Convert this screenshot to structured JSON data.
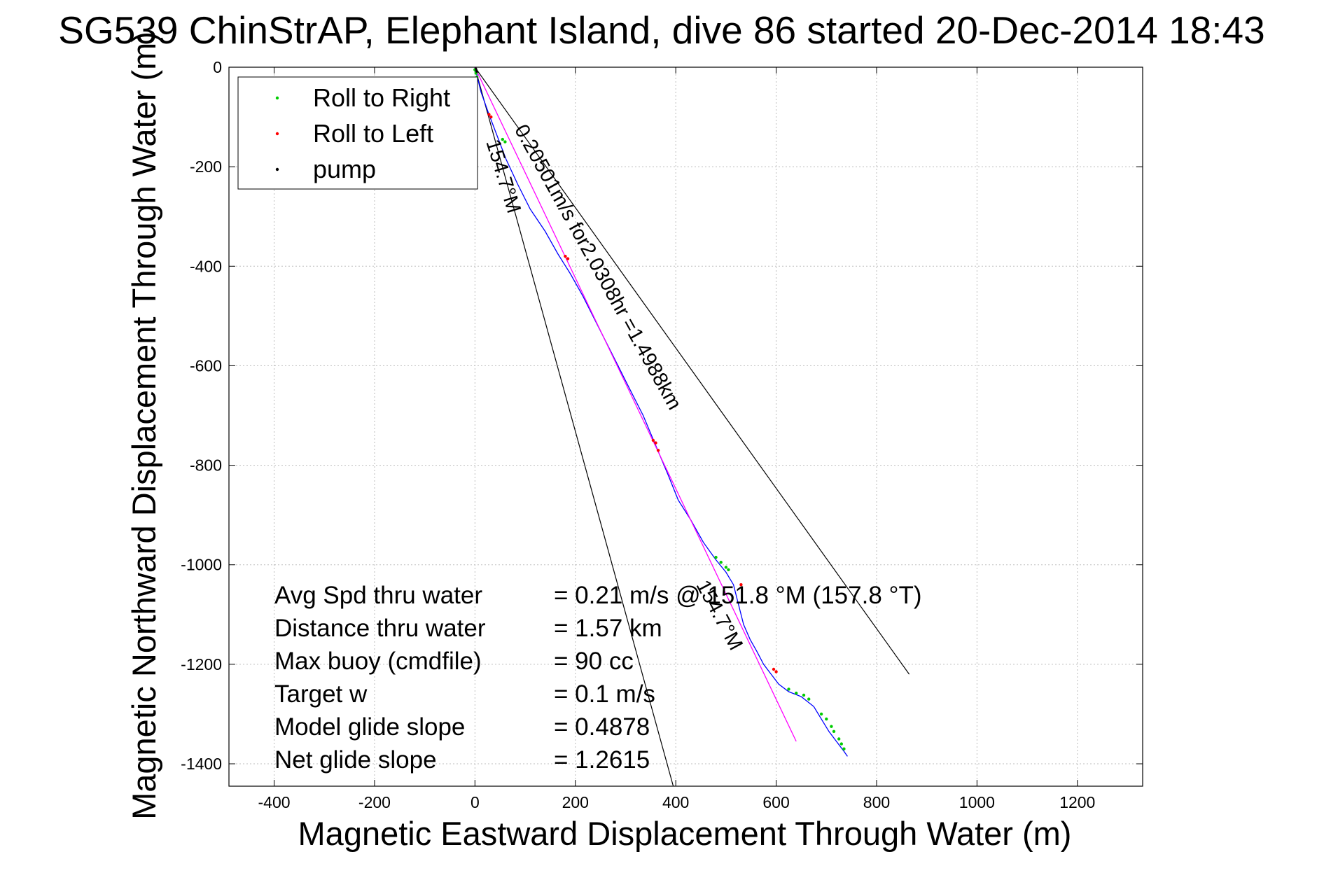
{
  "chart_data": {
    "type": "line",
    "title": "SG539 ChinStrAP, Elephant Island, dive 86 started 20-Dec-2014 18:43",
    "xlabel": "Magnetic Eastward Displacement Through Water (m)",
    "ylabel": "Magnetic Northward Displacement Through Water (m)",
    "xlim": [
      -490,
      1330
    ],
    "ylim": [
      -1445,
      0
    ],
    "xticks": [
      -400,
      -200,
      0,
      200,
      400,
      600,
      800,
      1000,
      1200
    ],
    "yticks": [
      0,
      -200,
      -400,
      -600,
      -800,
      -1000,
      -1200,
      -1400
    ],
    "grid": true,
    "legend_position": "top-left",
    "legend": [
      {
        "label": "Roll to Right",
        "color": "#00cc00"
      },
      {
        "label": "Roll to Left",
        "color": "#ff0000"
      },
      {
        "label": "pump",
        "color": "#000000"
      }
    ],
    "series": [
      {
        "color": "#0000ff",
        "x": [
          0,
          12,
          28,
          45,
          62,
          85,
          110,
          140,
          165,
          190,
          215,
          245,
          275,
          305,
          335,
          360,
          385,
          405,
          430,
          455,
          480,
          500,
          515,
          525,
          535,
          548,
          562,
          575,
          590,
          605,
          625,
          650,
          675,
          690,
          705,
          720,
          735,
          742
        ],
        "y": [
          0,
          -50,
          -95,
          -140,
          -185,
          -235,
          -285,
          -330,
          -375,
          -415,
          -460,
          -520,
          -580,
          -640,
          -700,
          -760,
          -820,
          -870,
          -910,
          -955,
          -990,
          -1015,
          -1040,
          -1080,
          -1120,
          -1150,
          -1175,
          -1200,
          -1220,
          -1240,
          -1255,
          -1265,
          -1285,
          -1310,
          -1335,
          -1355,
          -1375,
          -1385
        ]
      },
      {
        "color": "#ff00ff",
        "x": [
          0,
          640
        ],
        "y": [
          0,
          -1355
        ]
      }
    ],
    "reference_lines": [
      {
        "color": "#000000",
        "x": [
          0,
          395
        ],
        "y": [
          0,
          -1445
        ]
      },
      {
        "color": "#000000",
        "x": [
          0,
          865
        ],
        "y": [
          0,
          -1220
        ]
      }
    ],
    "roll_right_points": {
      "color": "#00cc00",
      "x": [
        0,
        2,
        4,
        55,
        60,
        480,
        490,
        500,
        505,
        625,
        640,
        655,
        665,
        690,
        700,
        710,
        715,
        725,
        730,
        735
      ],
      "y": [
        -5,
        -12,
        -20,
        -145,
        -150,
        -985,
        -995,
        -1005,
        -1010,
        -1250,
        -1258,
        -1262,
        -1270,
        -1300,
        -1310,
        -1325,
        -1335,
        -1350,
        -1360,
        -1370
      ]
    },
    "roll_left_points": {
      "color": "#ff0000",
      "x": [
        28,
        32,
        180,
        185,
        355,
        360,
        365,
        530,
        595,
        600
      ],
      "y": [
        -95,
        -100,
        -380,
        -385,
        -750,
        -755,
        -770,
        -1040,
        -1210,
        -1215
      ]
    },
    "pump_points": {
      "color": "#000000",
      "x": [
        2,
        3,
        4
      ],
      "y": [
        -3,
        -6,
        -9
      ]
    },
    "annotations": [
      {
        "text": "0.20501m/s for2.0308hr =1.4988km",
        "x": 78,
        "y": -125,
        "rotation": 61
      },
      {
        "text": "154.7°M",
        "x": 22,
        "y": -150,
        "rotation": 73
      },
      {
        "text": "154.7°M",
        "x": 440,
        "y": -1040,
        "rotation": 62
      }
    ],
    "stats": [
      {
        "label": "Avg Spd thru water",
        "value": "=  0.21 m/s @ 151.8 °M (157.8 °T)"
      },
      {
        "label": "Distance thru water",
        "value": "=  1.57 km"
      },
      {
        "label": "Max buoy (cmdfile)",
        "value": "= 90 cc"
      },
      {
        "label": "Target w",
        "value": "= 0.1 m/s"
      },
      {
        "label": "Model glide slope",
        "value": "= 0.4878"
      },
      {
        "label": "Net glide slope",
        "value": "= 1.2615"
      }
    ]
  }
}
